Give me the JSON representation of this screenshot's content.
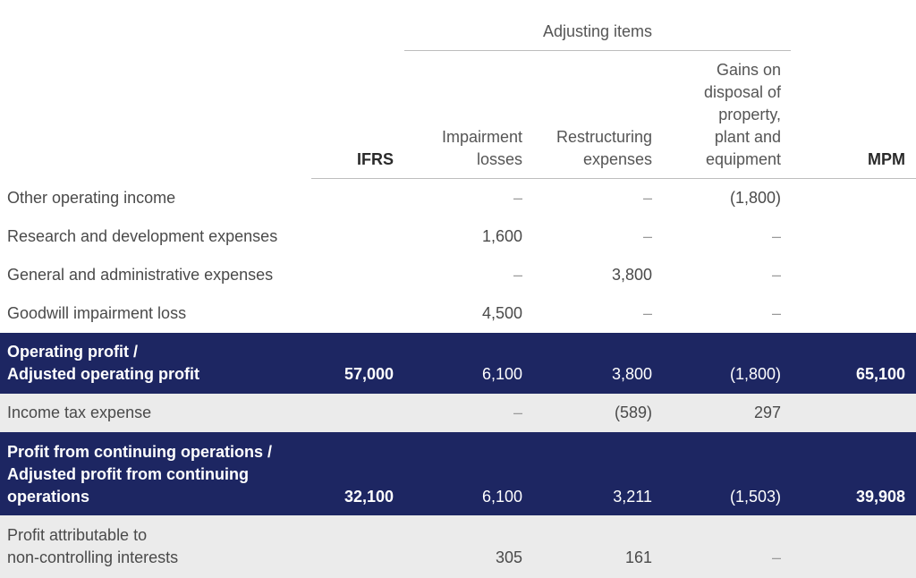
{
  "header": {
    "group_title": "Adjusting items",
    "ifrs": "IFRS",
    "impairment": [
      "Impairment",
      "losses"
    ],
    "restructuring": [
      "Restructuring",
      "expenses"
    ],
    "gains": [
      "Gains on",
      "disposal of",
      "property,",
      "plant and",
      "equipment"
    ],
    "mpm": "MPM"
  },
  "rows": [
    {
      "label": [
        "Other operating income"
      ],
      "ifrs": "",
      "impairment": "–",
      "restructuring": "–",
      "gains": "(1,800)",
      "mpm": ""
    },
    {
      "label": [
        "Research and development expenses"
      ],
      "ifrs": "",
      "impairment": "1,600",
      "restructuring": "–",
      "gains": "–",
      "mpm": ""
    },
    {
      "label": [
        "General and administrative expenses"
      ],
      "ifrs": "",
      "impairment": "–",
      "restructuring": "3,800",
      "gains": "–",
      "mpm": ""
    },
    {
      "label": [
        "Goodwill impairment loss"
      ],
      "ifrs": "",
      "impairment": "4,500",
      "restructuring": "–",
      "gains": "–",
      "mpm": ""
    },
    {
      "label": [
        "Operating profit /",
        "Adjusted operating profit"
      ],
      "ifrs": "57,000",
      "impairment": "6,100",
      "restructuring": "3,800",
      "gains": "(1,800)",
      "mpm": "65,100"
    },
    {
      "label": [
        "Income tax expense"
      ],
      "ifrs": "",
      "impairment": "–",
      "restructuring": "(589)",
      "gains": "297",
      "mpm": ""
    },
    {
      "label": [
        "Profit from continuing operations /",
        "Adjusted profit from continuing",
        "operations"
      ],
      "ifrs": "32,100",
      "impairment": "6,100",
      "restructuring": "3,211",
      "gains": "(1,503)",
      "mpm": "39,908"
    },
    {
      "label": [
        "Profit attributable to",
        "non-controlling interests"
      ],
      "ifrs": "",
      "impairment": "305",
      "restructuring": "161",
      "gains": "–",
      "mpm": ""
    }
  ]
}
